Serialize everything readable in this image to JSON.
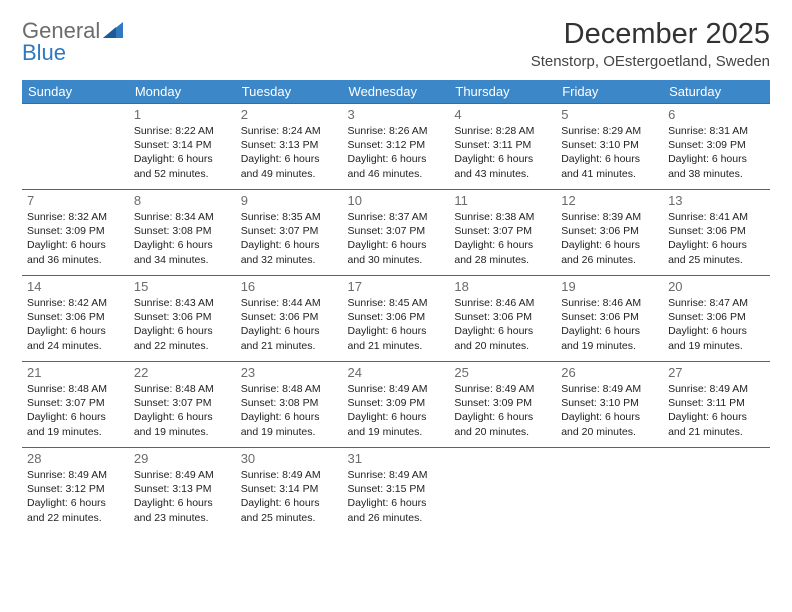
{
  "brand": {
    "part1": "General",
    "part2": "Blue"
  },
  "title": "December 2025",
  "location": "Stenstorp, OEstergoetland, Sweden",
  "colors": {
    "header_bg": "#3b87c8",
    "header_text": "#ffffff",
    "row_border": "#2f6ea8",
    "brand_gray": "#6c6c6c",
    "brand_blue": "#2f78c2"
  },
  "weekdays": [
    "Sunday",
    "Monday",
    "Tuesday",
    "Wednesday",
    "Thursday",
    "Friday",
    "Saturday"
  ],
  "start_offset": 1,
  "days": [
    {
      "n": 1,
      "sunrise": "8:22 AM",
      "sunset": "3:14 PM",
      "daylight": "6 hours and 52 minutes."
    },
    {
      "n": 2,
      "sunrise": "8:24 AM",
      "sunset": "3:13 PM",
      "daylight": "6 hours and 49 minutes."
    },
    {
      "n": 3,
      "sunrise": "8:26 AM",
      "sunset": "3:12 PM",
      "daylight": "6 hours and 46 minutes."
    },
    {
      "n": 4,
      "sunrise": "8:28 AM",
      "sunset": "3:11 PM",
      "daylight": "6 hours and 43 minutes."
    },
    {
      "n": 5,
      "sunrise": "8:29 AM",
      "sunset": "3:10 PM",
      "daylight": "6 hours and 41 minutes."
    },
    {
      "n": 6,
      "sunrise": "8:31 AM",
      "sunset": "3:09 PM",
      "daylight": "6 hours and 38 minutes."
    },
    {
      "n": 7,
      "sunrise": "8:32 AM",
      "sunset": "3:09 PM",
      "daylight": "6 hours and 36 minutes."
    },
    {
      "n": 8,
      "sunrise": "8:34 AM",
      "sunset": "3:08 PM",
      "daylight": "6 hours and 34 minutes."
    },
    {
      "n": 9,
      "sunrise": "8:35 AM",
      "sunset": "3:07 PM",
      "daylight": "6 hours and 32 minutes."
    },
    {
      "n": 10,
      "sunrise": "8:37 AM",
      "sunset": "3:07 PM",
      "daylight": "6 hours and 30 minutes."
    },
    {
      "n": 11,
      "sunrise": "8:38 AM",
      "sunset": "3:07 PM",
      "daylight": "6 hours and 28 minutes."
    },
    {
      "n": 12,
      "sunrise": "8:39 AM",
      "sunset": "3:06 PM",
      "daylight": "6 hours and 26 minutes."
    },
    {
      "n": 13,
      "sunrise": "8:41 AM",
      "sunset": "3:06 PM",
      "daylight": "6 hours and 25 minutes."
    },
    {
      "n": 14,
      "sunrise": "8:42 AM",
      "sunset": "3:06 PM",
      "daylight": "6 hours and 24 minutes."
    },
    {
      "n": 15,
      "sunrise": "8:43 AM",
      "sunset": "3:06 PM",
      "daylight": "6 hours and 22 minutes."
    },
    {
      "n": 16,
      "sunrise": "8:44 AM",
      "sunset": "3:06 PM",
      "daylight": "6 hours and 21 minutes."
    },
    {
      "n": 17,
      "sunrise": "8:45 AM",
      "sunset": "3:06 PM",
      "daylight": "6 hours and 21 minutes."
    },
    {
      "n": 18,
      "sunrise": "8:46 AM",
      "sunset": "3:06 PM",
      "daylight": "6 hours and 20 minutes."
    },
    {
      "n": 19,
      "sunrise": "8:46 AM",
      "sunset": "3:06 PM",
      "daylight": "6 hours and 19 minutes."
    },
    {
      "n": 20,
      "sunrise": "8:47 AM",
      "sunset": "3:06 PM",
      "daylight": "6 hours and 19 minutes."
    },
    {
      "n": 21,
      "sunrise": "8:48 AM",
      "sunset": "3:07 PM",
      "daylight": "6 hours and 19 minutes."
    },
    {
      "n": 22,
      "sunrise": "8:48 AM",
      "sunset": "3:07 PM",
      "daylight": "6 hours and 19 minutes."
    },
    {
      "n": 23,
      "sunrise": "8:48 AM",
      "sunset": "3:08 PM",
      "daylight": "6 hours and 19 minutes."
    },
    {
      "n": 24,
      "sunrise": "8:49 AM",
      "sunset": "3:09 PM",
      "daylight": "6 hours and 19 minutes."
    },
    {
      "n": 25,
      "sunrise": "8:49 AM",
      "sunset": "3:09 PM",
      "daylight": "6 hours and 20 minutes."
    },
    {
      "n": 26,
      "sunrise": "8:49 AM",
      "sunset": "3:10 PM",
      "daylight": "6 hours and 20 minutes."
    },
    {
      "n": 27,
      "sunrise": "8:49 AM",
      "sunset": "3:11 PM",
      "daylight": "6 hours and 21 minutes."
    },
    {
      "n": 28,
      "sunrise": "8:49 AM",
      "sunset": "3:12 PM",
      "daylight": "6 hours and 22 minutes."
    },
    {
      "n": 29,
      "sunrise": "8:49 AM",
      "sunset": "3:13 PM",
      "daylight": "6 hours and 23 minutes."
    },
    {
      "n": 30,
      "sunrise": "8:49 AM",
      "sunset": "3:14 PM",
      "daylight": "6 hours and 25 minutes."
    },
    {
      "n": 31,
      "sunrise": "8:49 AM",
      "sunset": "3:15 PM",
      "daylight": "6 hours and 26 minutes."
    }
  ],
  "labels": {
    "sunrise": "Sunrise:",
    "sunset": "Sunset:",
    "daylight": "Daylight:"
  }
}
